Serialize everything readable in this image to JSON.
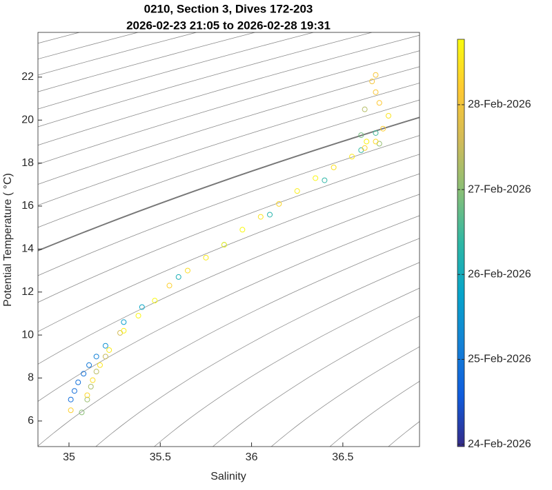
{
  "chart_data": {
    "type": "scatter",
    "title": "0210, Section 3, Dives 172-203",
    "subtitle": "2026-02-23 21:05 to 2026-02-28 19:31",
    "x_label": "Salinity",
    "y_label": "Potential Temperature ( °C)",
    "xlim": [
      34.83,
      36.92
    ],
    "ylim": [
      4.81,
      24.08
    ],
    "xticks": [
      35,
      35.5,
      36,
      36.5
    ],
    "yticks": [
      6,
      8,
      10,
      12,
      14,
      16,
      18,
      20,
      22
    ],
    "isopycnals": true,
    "colormap": [
      "#352a87",
      "#0f5cdd",
      "#1481d6",
      "#06a4ca",
      "#2eb7a4",
      "#87bf77",
      "#d1bb59",
      "#fec832",
      "#f9fb0e"
    ],
    "clim": [
      "2026-02-23T23:20",
      "2026-02-28T18:30"
    ],
    "cticks": [
      {
        "value": "2026-02-24",
        "label": "24-Feb-2026"
      },
      {
        "value": "2026-02-25",
        "label": "25-Feb-2026"
      },
      {
        "value": "2026-02-26",
        "label": "26-Feb-2026"
      },
      {
        "value": "2026-02-27",
        "label": "27-Feb-2026"
      },
      {
        "value": "2026-02-28",
        "label": "28-Feb-2026"
      }
    ],
    "series": [
      {
        "x": [
          35.01,
          35.03,
          35.05,
          35.08,
          35.11,
          35.15,
          35.2,
          35.3,
          35.4,
          35.6,
          35.85,
          36.1,
          36.4,
          36.6,
          36.68,
          35.07,
          35.1,
          35.12,
          35.15,
          35.2,
          35.28,
          36.62,
          36.7,
          36.6,
          35.01,
          35.1,
          35.13,
          35.17,
          35.22,
          35.3,
          35.38,
          35.47,
          35.55,
          35.65,
          35.75,
          35.85,
          35.95,
          36.05,
          36.15,
          36.25,
          36.35,
          36.45,
          36.55,
          36.62,
          36.68,
          36.72,
          36.75,
          36.7,
          36.68,
          36.66,
          36.68,
          36.63
        ],
        "y": [
          7.0,
          7.4,
          7.8,
          8.2,
          8.6,
          9.0,
          9.5,
          10.6,
          11.3,
          12.7,
          14.2,
          15.6,
          17.2,
          18.6,
          19.4,
          6.4,
          7.0,
          7.6,
          8.3,
          9.0,
          10.1,
          20.5,
          18.9,
          19.3,
          6.5,
          7.2,
          7.9,
          8.6,
          9.3,
          10.2,
          10.9,
          11.6,
          12.3,
          13.0,
          13.6,
          14.2,
          14.9,
          15.5,
          16.1,
          16.7,
          17.3,
          17.8,
          18.3,
          18.7,
          19.0,
          19.6,
          20.2,
          20.8,
          21.3,
          21.8,
          22.1,
          19.0
        ],
        "time": [
          "2026-02-24T20:00",
          "2026-02-24T20:30",
          "2026-02-24T21:00",
          "2026-02-24T22:00",
          "2026-02-25T01:00",
          "2026-02-25T04:00",
          "2026-02-25T10:00",
          "2026-02-25T16:00",
          "2026-02-25T20:00",
          "2026-02-26T02:00",
          "2026-02-26T04:00",
          "2026-02-26T06:00",
          "2026-02-26T08:00",
          "2026-02-26T10:00",
          "2026-02-26T12:00",
          "2026-02-27T00:00",
          "2026-02-27T03:00",
          "2026-02-27T06:00",
          "2026-02-27T09:00",
          "2026-02-27T12:00",
          "2026-02-27T15:00",
          "2026-02-27T08:00",
          "2026-02-27T02:00",
          "2026-02-26T20:00",
          "2026-02-28T06:00",
          "2026-02-28T08:00",
          "2026-02-28T10:00",
          "2026-02-28T12:00",
          "2026-02-28T14:00",
          "2026-02-28T16:00",
          "2026-02-28T17:00",
          "2026-02-28T18:00",
          "2026-02-28T06:00",
          "2026-02-28T10:00",
          "2026-02-28T14:00",
          "2026-02-28T16:00",
          "2026-02-28T18:00",
          "2026-02-28T12:00",
          "2026-02-28T08:00",
          "2026-02-28T15:00",
          "2026-02-28T17:00",
          "2026-02-28T11:00",
          "2026-02-28T13:00",
          "2026-02-28T07:00",
          "2026-02-28T09:00",
          "2026-02-28T05:00",
          "2026-02-28T12:00",
          "2026-02-28T04:00",
          "2026-02-28T03:00",
          "2026-02-28T01:00",
          "2026-02-28T02:00",
          "2026-02-28T16:00"
        ]
      }
    ]
  }
}
